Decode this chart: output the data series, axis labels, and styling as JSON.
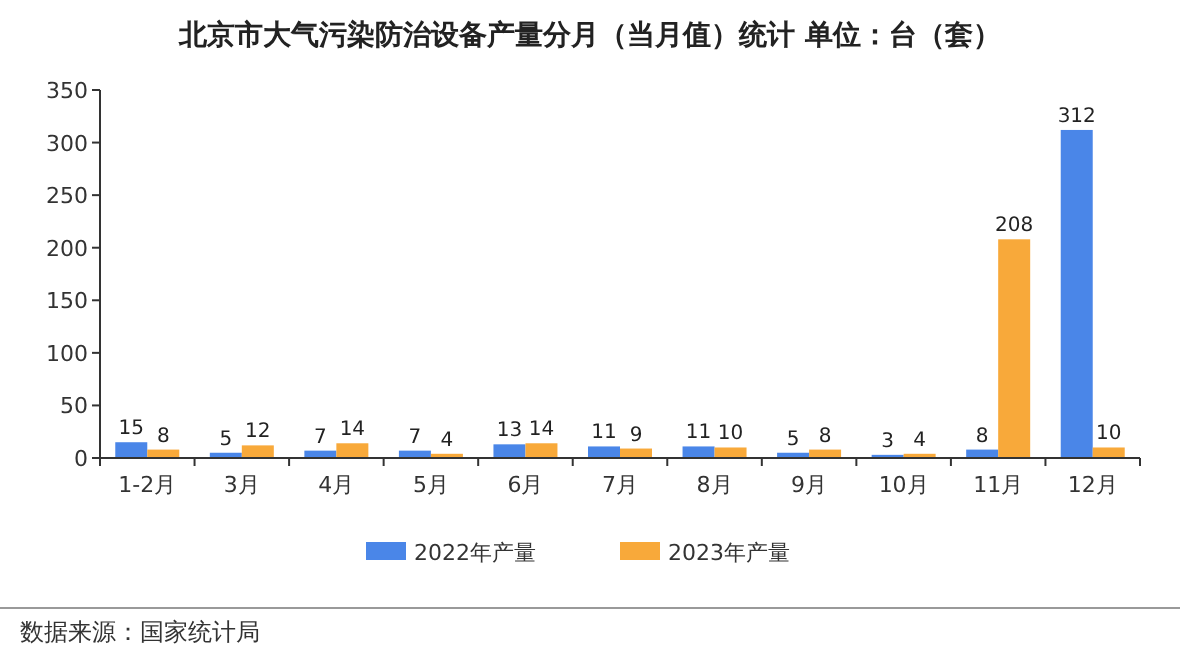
{
  "chart_data": {
    "type": "bar",
    "title": "北京市大气污染防治设备产量分月（当月值）统计 单位：台（套）",
    "categories": [
      "1-2月",
      "3月",
      "4月",
      "5月",
      "6月",
      "7月",
      "8月",
      "9月",
      "10月",
      "11月",
      "12月"
    ],
    "series": [
      {
        "name": "2022年产量",
        "color": "#4a86e8",
        "values": [
          15,
          5,
          7,
          7,
          13,
          11,
          11,
          5,
          3,
          8,
          312
        ]
      },
      {
        "name": "2023年产量",
        "color": "#f8a93a",
        "values": [
          8,
          12,
          14,
          4,
          14,
          9,
          10,
          8,
          4,
          208,
          10
        ]
      }
    ],
    "ylim": [
      0,
      350
    ],
    "yticks": [
      0,
      50,
      100,
      150,
      200,
      250,
      300,
      350
    ],
    "data_labels": true,
    "legend": "bottom",
    "grid": false,
    "annotations": [
      "数据来源：国家统计局"
    ]
  }
}
